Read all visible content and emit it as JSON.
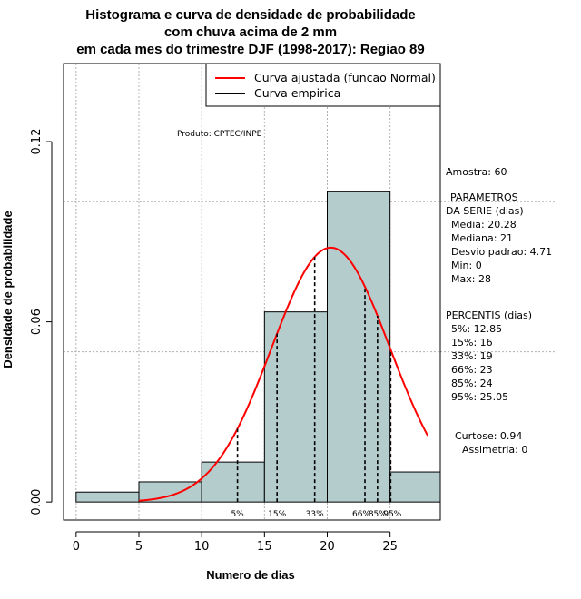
{
  "chart_data": {
    "type": "bar",
    "title_lines": [
      "Histograma e curva de densidade de probabilidade",
      "com chuva acima de 2 mm",
      "em cada mes do trimestre DJF (1998-2017): Regiao 89"
    ],
    "xlabel": "Numero de dias",
    "ylabel": "Densidade de probabilidade",
    "xlim": [
      -1,
      29
    ],
    "ylim": [
      -0.006,
      0.146
    ],
    "x_ticks": [
      0,
      5,
      10,
      15,
      20,
      25
    ],
    "y_ticks": [
      0.0,
      0.06,
      0.12
    ],
    "y_tick_labels": [
      "0.00",
      "0.06",
      "0.12"
    ],
    "bins": [
      {
        "start": 0,
        "end": 5,
        "density": 0.0033
      },
      {
        "start": 5,
        "end": 10,
        "density": 0.0067
      },
      {
        "start": 10,
        "end": 15,
        "density": 0.0133
      },
      {
        "start": 15,
        "end": 20,
        "density": 0.0633
      },
      {
        "start": 20,
        "end": 25,
        "density": 0.1033
      },
      {
        "start": 25,
        "end": 29,
        "density": 0.01
      }
    ],
    "normal_fit": {
      "mean": 20.28,
      "sd": 4.71,
      "x_from": 5,
      "x_to": 28
    },
    "percentile_lines": [
      {
        "label": "5%",
        "x": 12.85
      },
      {
        "label": "15%",
        "x": 16
      },
      {
        "label": "33%",
        "x": 19
      },
      {
        "label": "66%",
        "x": 23
      },
      {
        "label": "85%",
        "x": 24
      },
      {
        "label": "95%",
        "x": 25.05
      }
    ],
    "legend": [
      {
        "label": "Curva ajustada (funcao Normal)",
        "color": "#ff0000"
      },
      {
        "label": "Curva empirica",
        "color": "#000000"
      }
    ],
    "annotation": "Produto: CPTEC/INPE",
    "colors": {
      "bar_fill": "#b4cccc",
      "curve": "#ff0000",
      "grid": "#b0b0b0"
    }
  },
  "side_panel": {
    "sample": "Amostra: 60",
    "params_title": "PARAMETROS",
    "params_subtitle": "DA SERIE (dias)",
    "params": [
      "Media: 20.28",
      "Mediana: 21",
      "Desvio padrao: 4.71",
      "Min: 0",
      "Max: 28"
    ],
    "percentis_title": "PERCENTIS (dias)",
    "percentis": [
      "5%: 12.85",
      "15%: 16",
      "33%: 19",
      "66%: 23",
      "85%: 24",
      "95%: 25.05"
    ],
    "curtose": "Curtose: 0.94",
    "assimetria": "Assimetria: 0"
  }
}
